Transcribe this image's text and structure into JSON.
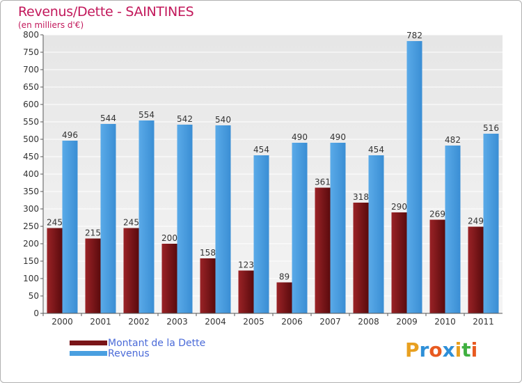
{
  "header": {
    "title": "Revenus/Dette - SAINTINES",
    "subtitle": "(en milliers d'€)"
  },
  "legend": {
    "items": [
      {
        "label": "Montant de la Dette",
        "color": "#7a1518"
      },
      {
        "label": "Revenus",
        "color": "#4a9fe0"
      }
    ]
  },
  "logo": {
    "letters": [
      "P",
      "r",
      "o",
      "x",
      "i",
      "t",
      "i"
    ],
    "colors": [
      "#e8a020",
      "#2e8fd8",
      "#e85a20",
      "#2e8fd8",
      "#e8a020",
      "#40b040",
      "#e85a20"
    ]
  },
  "chart_data": {
    "type": "bar",
    "categories": [
      "2000",
      "2001",
      "2002",
      "2003",
      "2004",
      "2005",
      "2006",
      "2007",
      "2008",
      "2009",
      "2010",
      "2011"
    ],
    "series": [
      {
        "name": "Montant de la Dette",
        "values": [
          245,
          215,
          245,
          200,
          158,
          123,
          89,
          361,
          318,
          290,
          269,
          249
        ],
        "color": "#7a1518"
      },
      {
        "name": "Revenus",
        "values": [
          496,
          544,
          554,
          542,
          540,
          454,
          490,
          490,
          454,
          782,
          482,
          516
        ],
        "color": "#4a9fe0"
      }
    ],
    "yticks": [
      0,
      50,
      100,
      150,
      200,
      250,
      300,
      350,
      400,
      450,
      500,
      550,
      600,
      650,
      700,
      750,
      800
    ],
    "ylim": [
      0,
      800
    ],
    "grid": true,
    "legend_position": "bottom-left"
  }
}
